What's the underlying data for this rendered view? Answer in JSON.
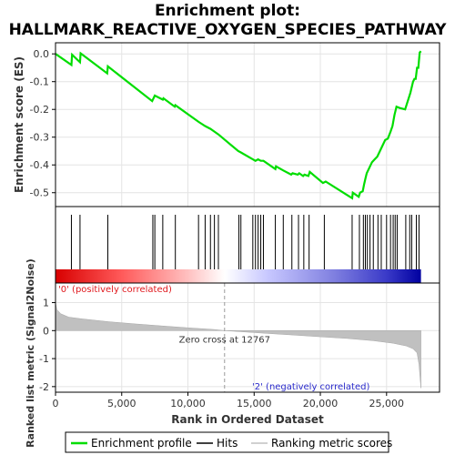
{
  "chart_data": {
    "type": "line",
    "title_line1": "Enrichment plot:",
    "title_line2": "HALLMARK_REACTIVE_OXYGEN_SPECIES_PATHWAY",
    "es_panel": {
      "ylabel": "Enrichment score (ES)",
      "ylim": [
        -0.55,
        0.04
      ],
      "yticks": [
        0.0,
        -0.1,
        -0.2,
        -0.3,
        -0.4,
        -0.5
      ],
      "ytick_labels": [
        "0.0",
        "-0.1",
        "-0.2",
        "-0.3",
        "-0.4",
        "-0.5"
      ],
      "grid": true,
      "line_color": "#00dd00",
      "points": [
        [
          0,
          0.0
        ],
        [
          1200,
          -0.04
        ],
        [
          1250,
          -0.003
        ],
        [
          1850,
          -0.03
        ],
        [
          1900,
          0.002
        ],
        [
          3900,
          -0.07
        ],
        [
          3950,
          -0.045
        ],
        [
          7300,
          -0.17
        ],
        [
          7400,
          -0.16
        ],
        [
          7500,
          -0.15
        ],
        [
          8100,
          -0.165
        ],
        [
          8150,
          -0.16
        ],
        [
          9000,
          -0.19
        ],
        [
          9050,
          -0.185
        ],
        [
          10800,
          -0.245
        ],
        [
          11300,
          -0.26
        ],
        [
          11700,
          -0.27
        ],
        [
          12000,
          -0.28
        ],
        [
          12300,
          -0.29
        ],
        [
          13800,
          -0.35
        ],
        [
          14000,
          -0.355
        ],
        [
          14900,
          -0.38
        ],
        [
          15100,
          -0.385
        ],
        [
          15300,
          -0.38
        ],
        [
          15500,
          -0.385
        ],
        [
          15700,
          -0.385
        ],
        [
          16600,
          -0.415
        ],
        [
          16650,
          -0.405
        ],
        [
          17200,
          -0.42
        ],
        [
          17800,
          -0.435
        ],
        [
          17900,
          -0.43
        ],
        [
          18300,
          -0.435
        ],
        [
          18400,
          -0.43
        ],
        [
          18700,
          -0.44
        ],
        [
          18800,
          -0.435
        ],
        [
          19100,
          -0.44
        ],
        [
          19200,
          -0.425
        ],
        [
          20200,
          -0.465
        ],
        [
          20400,
          -0.46
        ],
        [
          22400,
          -0.52
        ],
        [
          22450,
          -0.5
        ],
        [
          22900,
          -0.515
        ],
        [
          23000,
          -0.5
        ],
        [
          23200,
          -0.495
        ],
        [
          23300,
          -0.47
        ],
        [
          23400,
          -0.45
        ],
        [
          23500,
          -0.43
        ],
        [
          23700,
          -0.41
        ],
        [
          23900,
          -0.39
        ],
        [
          24100,
          -0.38
        ],
        [
          24300,
          -0.37
        ],
        [
          24500,
          -0.35
        ],
        [
          24700,
          -0.33
        ],
        [
          24900,
          -0.31
        ],
        [
          25100,
          -0.305
        ],
        [
          25300,
          -0.28
        ],
        [
          25450,
          -0.26
        ],
        [
          25600,
          -0.22
        ],
        [
          25750,
          -0.19
        ],
        [
          26000,
          -0.195
        ],
        [
          26400,
          -0.2
        ],
        [
          26600,
          -0.17
        ],
        [
          26800,
          -0.14
        ],
        [
          27000,
          -0.1
        ],
        [
          27100,
          -0.09
        ],
        [
          27200,
          -0.09
        ],
        [
          27300,
          -0.05
        ],
        [
          27400,
          -0.05
        ],
        [
          27500,
          0.005
        ],
        [
          27600,
          0.01
        ]
      ]
    },
    "hits_panel": {
      "hit_positions": [
        1200,
        1850,
        3950,
        7350,
        7500,
        8100,
        9050,
        10800,
        11300,
        11700,
        12000,
        12300,
        13850,
        14000,
        14900,
        15100,
        15300,
        15500,
        15700,
        16600,
        17200,
        17850,
        18350,
        18750,
        19150,
        20300,
        22400,
        22950,
        23250,
        23400,
        23550,
        23750,
        24000,
        24350,
        24600,
        25000,
        25300,
        25500,
        25650,
        25800,
        26450,
        26750,
        26900,
        27250,
        27450
      ],
      "color_gradient_stops": [
        [
          0,
          "#d80000"
        ],
        [
          5000,
          "#ff5a5a"
        ],
        [
          10000,
          "#ffc0c0"
        ],
        [
          12767,
          "#ffffff"
        ],
        [
          16000,
          "#c8c8ff"
        ],
        [
          21000,
          "#8080e0"
        ],
        [
          25000,
          "#3a3ac8"
        ],
        [
          27600,
          "#0000a0"
        ]
      ]
    },
    "metric_panel": {
      "ylabel": "Ranked list metric (Signal2Noise)",
      "ylim": [
        -2.2,
        1.7
      ],
      "yticks": [
        1,
        0,
        -1,
        -2
      ],
      "ytick_labels": [
        "1",
        "0",
        "-1",
        "-2"
      ],
      "grid": true,
      "fill_color": "#c0c0c0",
      "points": [
        [
          0,
          1.0
        ],
        [
          100,
          0.75
        ],
        [
          400,
          0.6
        ],
        [
          1000,
          0.48
        ],
        [
          2000,
          0.42
        ],
        [
          4000,
          0.32
        ],
        [
          6000,
          0.24
        ],
        [
          8000,
          0.17
        ],
        [
          10000,
          0.1
        ],
        [
          12000,
          0.04
        ],
        [
          12767,
          0.0
        ],
        [
          14000,
          -0.04
        ],
        [
          16000,
          -0.1
        ],
        [
          18000,
          -0.16
        ],
        [
          20000,
          -0.22
        ],
        [
          22000,
          -0.28
        ],
        [
          24000,
          -0.36
        ],
        [
          25500,
          -0.45
        ],
        [
          26500,
          -0.55
        ],
        [
          27000,
          -0.65
        ],
        [
          27300,
          -0.8
        ],
        [
          27450,
          -1.2
        ],
        [
          27550,
          -1.8
        ],
        [
          27600,
          -2.05
        ]
      ],
      "zero_cross_label": "Zero cross at 12767",
      "zero_cross": 12767,
      "pos_label": "'0' (positively correlated)",
      "neg_label": "'2' (negatively correlated)"
    },
    "xlabel": "Rank in Ordered Dataset",
    "xlim": [
      0,
      29000
    ],
    "xticks": [
      0,
      5000,
      10000,
      15000,
      20000,
      25000
    ],
    "xtick_labels": [
      "0",
      "5,000",
      "10,000",
      "15,000",
      "20,000",
      "25,000"
    ],
    "n_ranked": 27600,
    "legend": [
      {
        "label": "Enrichment profile",
        "color": "#00dd00"
      },
      {
        "label": "Hits",
        "color": "#000000"
      },
      {
        "label": "Ranking metric scores",
        "color": "#c0c0c0"
      }
    ]
  }
}
